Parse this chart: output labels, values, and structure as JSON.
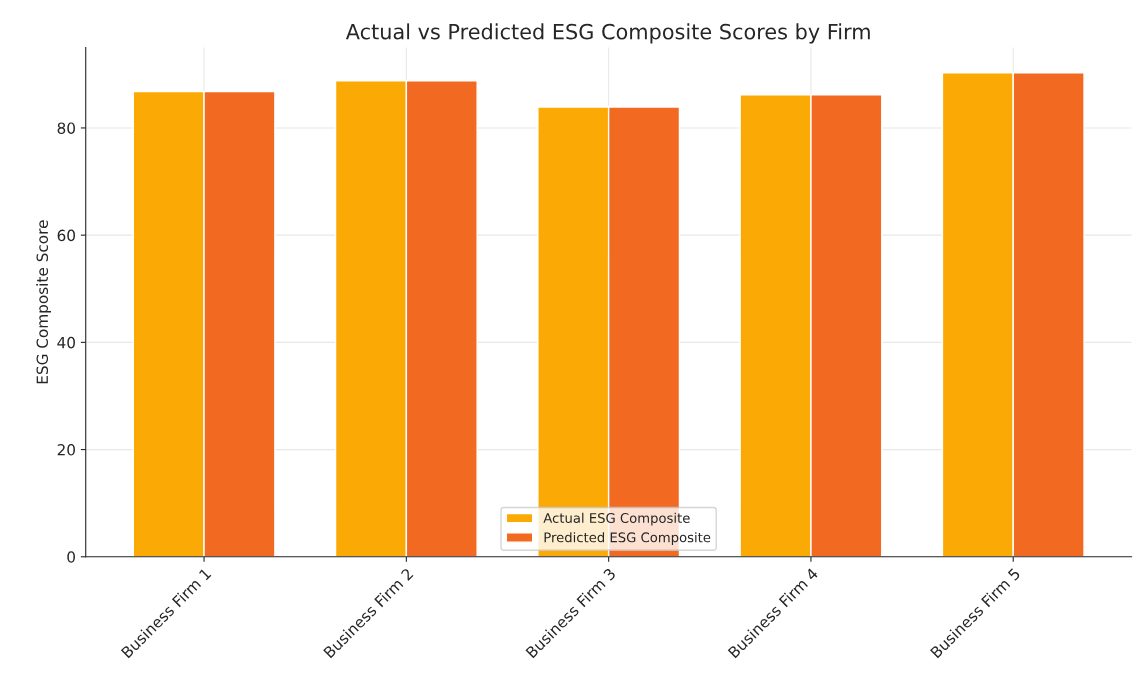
{
  "chart_data": {
    "type": "bar",
    "title": "Actual vs Predicted ESG Composite Scores by Firm",
    "ylabel": "ESG Composite Score",
    "categories": [
      "Business Firm 1",
      "Business Firm 2",
      "Business Firm 3",
      "Business Firm 4",
      "Business Firm 5"
    ],
    "series": [
      {
        "name": "Actual ESG Composite",
        "color": "#fbaa05",
        "values": [
          86.8,
          88.8,
          83.9,
          86.2,
          90.3
        ]
      },
      {
        "name": "Predicted ESG Composite",
        "color": "#f26a22",
        "values": [
          86.8,
          88.8,
          83.9,
          86.2,
          90.3
        ]
      }
    ],
    "ylim": [
      0,
      95
    ],
    "yticks": [
      0,
      20,
      40,
      60,
      80
    ],
    "grid": true,
    "legend": "bottom"
  }
}
